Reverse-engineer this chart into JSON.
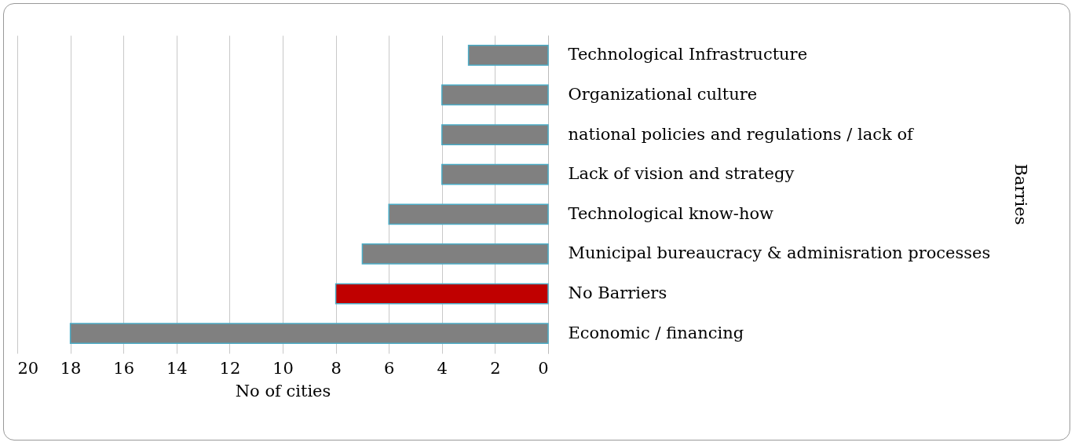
{
  "chart_data": {
    "type": "bar",
    "orientation": "horizontal",
    "categories": [
      "Technological Infrastructure",
      "Organizational culture",
      "national policies and regulations / lack of",
      "Lack of vision and strategy",
      "Technological know-how",
      "Municipal bureaucracy & adminisration processes",
      "No Barriers",
      "Economic / financing"
    ],
    "values": [
      3,
      4,
      4,
      4,
      6,
      7,
      8,
      18
    ],
    "colors": [
      "#808080",
      "#808080",
      "#808080",
      "#808080",
      "#808080",
      "#808080",
      "#c00000",
      "#808080"
    ],
    "xlim": [
      20,
      0
    ],
    "xticks": [
      20,
      18,
      16,
      14,
      12,
      10,
      8,
      6,
      4,
      2,
      0
    ],
    "xlabel": "No of cities",
    "ylabel": "Barries",
    "grid": "x"
  }
}
